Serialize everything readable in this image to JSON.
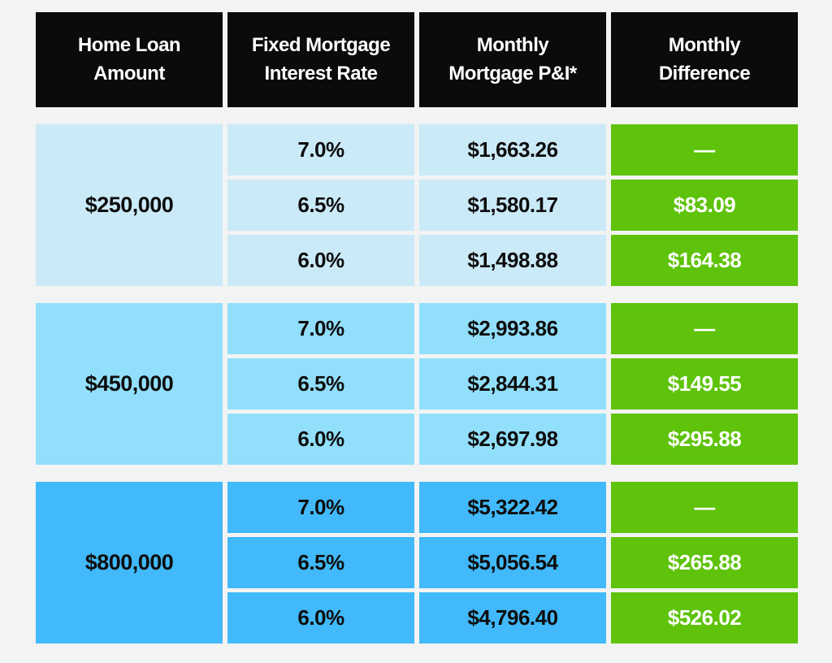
{
  "colors": {
    "page_bg": "#F2F3F3",
    "header_bg": "#0B0B0B",
    "header_text": "#FFFFFF",
    "data_text": "#0D0D0D",
    "group_0": "#CBEAF8",
    "group_1": "#92DFFC",
    "group_2": "#41B9FA",
    "green": "#5EC30A",
    "diff_text": "#FFFFFF"
  },
  "table": {
    "headers": [
      "Home Loan\nAmount",
      "Fixed Mortgage\nInterest Rate",
      "Monthly\nMortgage P&I*",
      "Monthly\nDifference"
    ],
    "groups": [
      {
        "loan_amount": "$250,000",
        "rows": [
          {
            "rate": "7.0%",
            "payment": "$1,663.26",
            "difference": "—"
          },
          {
            "rate": "6.5%",
            "payment": "$1,580.17",
            "difference": "$83.09"
          },
          {
            "rate": "6.0%",
            "payment": "$1,498.88",
            "difference": "$164.38"
          }
        ]
      },
      {
        "loan_amount": "$450,000",
        "rows": [
          {
            "rate": "7.0%",
            "payment": "$2,993.86",
            "difference": "—"
          },
          {
            "rate": "6.5%",
            "payment": "$2,844.31",
            "difference": "$149.55"
          },
          {
            "rate": "6.0%",
            "payment": "$2,697.98",
            "difference": "$295.88"
          }
        ]
      },
      {
        "loan_amount": "$800,000",
        "rows": [
          {
            "rate": "7.0%",
            "payment": "$5,322.42",
            "difference": "—"
          },
          {
            "rate": "6.5%",
            "payment": "$5,056.54",
            "difference": "$265.88"
          },
          {
            "rate": "6.0%",
            "payment": "$4,796.40",
            "difference": "$526.02"
          }
        ]
      }
    ]
  },
  "chart_data": {
    "type": "table",
    "title": "",
    "columns": [
      "Home Loan Amount",
      "Fixed Mortgage Interest Rate",
      "Monthly Mortgage P&I*",
      "Monthly Difference"
    ],
    "rows": [
      [
        "$250,000",
        "7.0%",
        "$1,663.26",
        "—"
      ],
      [
        "$250,000",
        "6.5%",
        "$1,580.17",
        "$83.09"
      ],
      [
        "$250,000",
        "6.0%",
        "$1,498.88",
        "$164.38"
      ],
      [
        "$450,000",
        "7.0%",
        "$2,993.86",
        "—"
      ],
      [
        "$450,000",
        "6.5%",
        "$2,844.31",
        "$149.55"
      ],
      [
        "$450,000",
        "6.0%",
        "$2,697.98",
        "$295.88"
      ],
      [
        "$800,000",
        "7.0%",
        "$5,322.42",
        "—"
      ],
      [
        "$800,000",
        "6.5%",
        "$5,056.54",
        "$265.88"
      ],
      [
        "$800,000",
        "6.0%",
        "$4,796.40",
        "$526.02"
      ]
    ]
  }
}
